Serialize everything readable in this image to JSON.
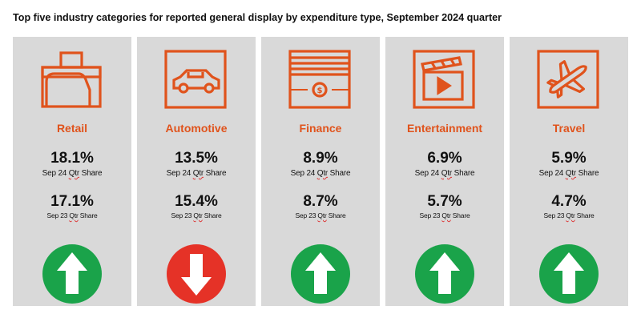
{
  "title": "Top five industry categories for reported general display by expenditure type, September 2024 quarter",
  "colors": {
    "accent": "#e0531c",
    "up": "#1aa34a",
    "down": "#e53227",
    "card": "#d9d9d9"
  },
  "cards": [
    {
      "icon": "briefcase-icon",
      "label": "Retail",
      "current": "18.1%",
      "current_label_a": "Sep 24 ",
      "current_label_q": "Qtr",
      "current_label_b": " Share",
      "previous": "17.1%",
      "previous_label_a": "Sep 23 ",
      "previous_label_q": "Qtr",
      "previous_label_b": " Share",
      "trend": "up"
    },
    {
      "icon": "car-icon",
      "label": "Automotive",
      "current": "13.5%",
      "current_label_a": "Sep 24 ",
      "current_label_q": "Qtr",
      "current_label_b": " Share",
      "previous": "15.4%",
      "previous_label_a": "Sep 23 ",
      "previous_label_q": "Qtr",
      "previous_label_b": " Share",
      "trend": "down"
    },
    {
      "icon": "banknote-icon",
      "label": "Finance",
      "current": "8.9%",
      "current_label_a": "Sep 24 ",
      "current_label_q": "Qtr",
      "current_label_b": " Share",
      "previous": "8.7%",
      "previous_label_a": "Sep 23 ",
      "previous_label_q": "Qtr",
      "previous_label_b": " Share",
      "trend": "up"
    },
    {
      "icon": "clapperboard-icon",
      "label": "Entertainment",
      "current": "6.9%",
      "current_label_a": "Sep 24 ",
      "current_label_q": "Qtr",
      "current_label_b": " Share",
      "previous": "5.7%",
      "previous_label_a": "Sep 23 ",
      "previous_label_q": "Qtr",
      "previous_label_b": " Share",
      "trend": "up"
    },
    {
      "icon": "airplane-icon",
      "label": "Travel",
      "current": "5.9%",
      "current_label_a": "Sep 24 ",
      "current_label_q": "Qtr",
      "current_label_b": " Share",
      "previous": "4.7%",
      "previous_label_a": "Sep 23 ",
      "previous_label_q": "Qtr",
      "previous_label_b": " Share",
      "trend": "up"
    }
  ]
}
